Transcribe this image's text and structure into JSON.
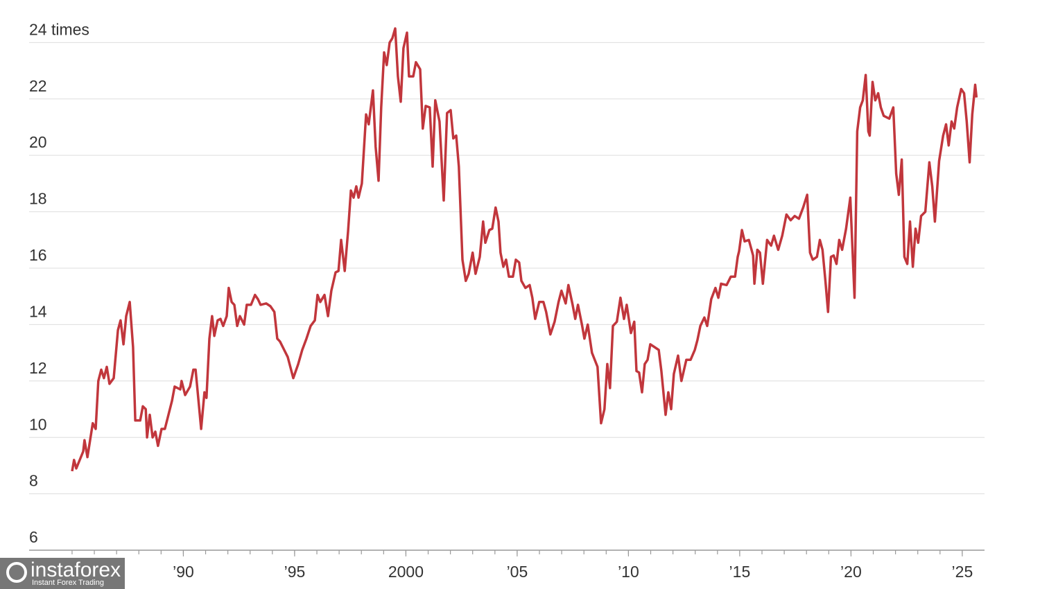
{
  "chart_data": {
    "type": "line",
    "color": "#c1363c",
    "grid": true,
    "xlim": [
      1983.07,
      2026
    ],
    "ylim": [
      6,
      24.5
    ],
    "yticks": [
      6,
      8,
      10,
      12,
      14,
      16,
      18,
      20,
      22,
      {
        "value": 24,
        "label": "24 times"
      }
    ],
    "xticks": [
      {
        "value": 1990,
        "label": "’90"
      },
      {
        "value": 1995,
        "label": "’95"
      },
      2000,
      {
        "value": 2005,
        "label": "’05"
      },
      {
        "value": 2010,
        "label": "’10"
      },
      {
        "value": 2015,
        "label": "’15"
      },
      {
        "value": 2020,
        "label": "’20"
      },
      {
        "value": 2025,
        "label": "’25"
      }
    ],
    "xminor_ticks": [
      1985,
      1986,
      1987,
      1988,
      1989,
      1990,
      1991,
      1992,
      1993,
      1994,
      1995,
      1996,
      1997,
      1998,
      1999,
      2000,
      2001,
      2002,
      2003,
      2004,
      2005,
      2006,
      2007,
      2008,
      2009,
      2010,
      2011,
      2012,
      2013,
      2014,
      2015,
      2016,
      2017,
      2018,
      2019,
      2020,
      2021,
      2022,
      2023,
      2024,
      2025
    ],
    "x": [
      1985.0,
      1985.09,
      1985.19,
      1985.5,
      1985.56,
      1985.69,
      1985.93,
      1986.06,
      1986.18,
      1986.31,
      1986.43,
      1986.56,
      1986.68,
      1986.87,
      1987.06,
      1987.18,
      1987.31,
      1987.43,
      1987.59,
      1987.74,
      1987.84,
      1988.06,
      1988.18,
      1988.31,
      1988.37,
      1988.49,
      1988.62,
      1988.74,
      1988.86,
      1989.02,
      1989.17,
      1989.49,
      1989.61,
      1989.86,
      1989.92,
      1990.08,
      1990.3,
      1990.45,
      1990.55,
      1990.8,
      1990.95,
      1991.04,
      1991.17,
      1991.29,
      1991.39,
      1991.54,
      1991.67,
      1991.79,
      1991.95,
      1992.04,
      1992.17,
      1992.29,
      1992.42,
      1992.54,
      1992.73,
      1992.85,
      1993.04,
      1993.22,
      1993.35,
      1993.47,
      1993.72,
      1993.91,
      1994.09,
      1994.22,
      1994.34,
      1994.53,
      1994.69,
      1994.94,
      1995.16,
      1995.34,
      1995.53,
      1995.72,
      1995.91,
      1996.03,
      1996.15,
      1996.34,
      1996.5,
      1996.65,
      1996.84,
      1996.97,
      1997.09,
      1997.25,
      1997.4,
      1997.53,
      1997.65,
      1997.77,
      1997.87,
      1998.02,
      1998.21,
      1998.33,
      1998.52,
      1998.64,
      1998.77,
      1998.89,
      1999.02,
      1999.14,
      1999.27,
      1999.39,
      1999.52,
      1999.64,
      1999.77,
      1999.89,
      2000.05,
      2000.14,
      2000.33,
      2000.45,
      2000.64,
      2000.76,
      2000.89,
      2001.07,
      2001.2,
      2001.32,
      2001.51,
      2001.7,
      2001.85,
      2002.01,
      2002.13,
      2002.26,
      2002.38,
      2002.54,
      2002.69,
      2002.82,
      2003.0,
      2003.13,
      2003.32,
      2003.47,
      2003.57,
      2003.75,
      2003.88,
      2004.03,
      2004.16,
      2004.25,
      2004.38,
      2004.5,
      2004.63,
      2004.81,
      2004.94,
      2005.09,
      2005.19,
      2005.37,
      2005.56,
      2005.68,
      2005.81,
      2005.99,
      2006.18,
      2006.3,
      2006.49,
      2006.68,
      2006.86,
      2006.99,
      2007.18,
      2007.3,
      2007.49,
      2007.61,
      2007.73,
      2007.92,
      2008.02,
      2008.17,
      2008.36,
      2008.61,
      2008.77,
      2008.92,
      2009.05,
      2009.17,
      2009.3,
      2009.48,
      2009.64,
      2009.8,
      2009.92,
      2010.11,
      2010.26,
      2010.36,
      2010.48,
      2010.61,
      2010.73,
      2010.86,
      2010.98,
      2011.17,
      2011.36,
      2011.48,
      2011.67,
      2011.79,
      2011.92,
      2012.04,
      2012.23,
      2012.38,
      2012.6,
      2012.79,
      2012.98,
      2013.1,
      2013.23,
      2013.41,
      2013.54,
      2013.72,
      2013.91,
      2014.04,
      2014.16,
      2014.41,
      2014.6,
      2014.79,
      2014.91,
      2014.97,
      2015.1,
      2015.22,
      2015.41,
      2015.6,
      2015.66,
      2015.79,
      2015.91,
      2016.04,
      2016.23,
      2016.41,
      2016.54,
      2016.73,
      2016.91,
      2017.1,
      2017.29,
      2017.47,
      2017.66,
      2017.85,
      2018.03,
      2018.16,
      2018.28,
      2018.47,
      2018.6,
      2018.72,
      2018.85,
      2018.97,
      2019.1,
      2019.22,
      2019.35,
      2019.47,
      2019.6,
      2019.78,
      2019.97,
      2020.16,
      2020.28,
      2020.41,
      2020.53,
      2020.66,
      2020.78,
      2020.84,
      2020.97,
      2021.09,
      2021.22,
      2021.34,
      2021.47,
      2021.72,
      2021.9,
      2022.03,
      2022.15,
      2022.28,
      2022.4,
      2022.53,
      2022.65,
      2022.78,
      2022.9,
      2023.02,
      2023.15,
      2023.34,
      2023.52,
      2023.65,
      2023.77,
      2023.96,
      2024.14,
      2024.27,
      2024.39,
      2024.52,
      2024.64,
      2024.77,
      2024.95,
      2025.08,
      2025.2,
      2025.33,
      2025.45,
      2025.58,
      2025.64
    ],
    "values": [
      8.8,
      9.2,
      8.9,
      9.5,
      9.9,
      9.3,
      10.5,
      10.3,
      12.0,
      12.4,
      12.1,
      12.5,
      11.9,
      12.1,
      13.8,
      14.15,
      13.3,
      14.3,
      14.8,
      13.2,
      10.6,
      10.6,
      11.1,
      11.0,
      10.0,
      10.8,
      10.0,
      10.2,
      9.7,
      10.3,
      10.3,
      11.3,
      11.8,
      11.7,
      12.0,
      11.5,
      11.8,
      12.4,
      12.4,
      10.3,
      11.6,
      11.4,
      13.5,
      14.3,
      13.6,
      14.15,
      14.2,
      13.95,
      14.3,
      15.3,
      14.8,
      14.7,
      13.95,
      14.3,
      14.0,
      14.7,
      14.7,
      15.05,
      14.9,
      14.7,
      14.75,
      14.65,
      14.45,
      13.5,
      13.4,
      13.1,
      12.85,
      12.1,
      12.6,
      13.1,
      13.5,
      13.95,
      14.15,
      15.05,
      14.8,
      15.05,
      14.3,
      15.2,
      15.85,
      15.9,
      17.0,
      15.9,
      17.3,
      18.75,
      18.5,
      18.9,
      18.5,
      19.0,
      21.45,
      21.1,
      22.3,
      20.3,
      19.1,
      21.7,
      23.65,
      23.2,
      24.0,
      24.15,
      24.5,
      22.8,
      21.9,
      23.8,
      24.35,
      22.8,
      22.8,
      23.3,
      23.05,
      20.95,
      21.75,
      21.7,
      19.6,
      21.95,
      21.2,
      18.4,
      21.5,
      21.6,
      20.6,
      20.7,
      19.6,
      16.3,
      15.55,
      15.8,
      16.55,
      15.8,
      16.4,
      17.65,
      16.9,
      17.35,
      17.4,
      18.15,
      17.65,
      16.55,
      16.05,
      16.3,
      15.7,
      15.7,
      16.3,
      16.2,
      15.55,
      15.3,
      15.4,
      14.95,
      14.2,
      14.8,
      14.8,
      14.45,
      13.65,
      14.1,
      14.8,
      15.2,
      14.75,
      15.4,
      14.7,
      14.2,
      14.7,
      13.95,
      13.5,
      14.0,
      13.0,
      12.5,
      10.5,
      11.0,
      12.6,
      11.75,
      13.95,
      14.1,
      14.95,
      14.2,
      14.7,
      13.7,
      14.1,
      12.35,
      12.3,
      11.6,
      12.6,
      12.75,
      13.3,
      13.2,
      13.1,
      12.35,
      10.8,
      11.6,
      11.0,
      12.25,
      12.9,
      12.0,
      12.75,
      12.75,
      13.1,
      13.45,
      13.95,
      14.25,
      13.95,
      14.9,
      15.3,
      14.95,
      15.45,
      15.4,
      15.7,
      15.7,
      16.4,
      16.6,
      17.35,
      16.95,
      17.0,
      16.45,
      15.45,
      16.65,
      16.55,
      15.45,
      17.0,
      16.8,
      17.15,
      16.65,
      17.15,
      17.9,
      17.7,
      17.85,
      17.75,
      18.15,
      18.6,
      16.55,
      16.3,
      16.4,
      17.0,
      16.65,
      15.55,
      14.45,
      16.4,
      16.45,
      16.15,
      17.0,
      16.65,
      17.4,
      18.5,
      14.95,
      20.85,
      21.7,
      21.95,
      22.85,
      20.85,
      20.7,
      22.6,
      21.95,
      22.2,
      21.7,
      21.4,
      21.3,
      21.7,
      19.35,
      18.6,
      19.85,
      16.4,
      16.15,
      17.65,
      16.05,
      17.4,
      16.9,
      17.85,
      18.0,
      19.75,
      18.9,
      17.65,
      19.8,
      20.7,
      21.1,
      20.35,
      21.2,
      20.95,
      21.7,
      22.35,
      22.2,
      21.2,
      19.75,
      21.45,
      22.5,
      22.05
    ]
  },
  "watermark": {
    "title": "instaforex",
    "subtitle": "Instant Forex Trading"
  }
}
